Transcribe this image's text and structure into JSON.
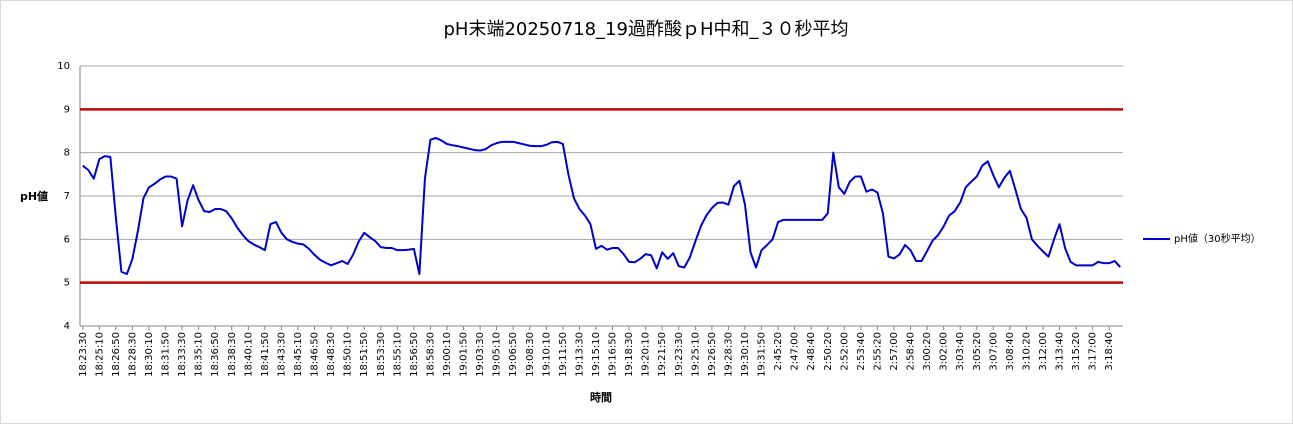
{
  "chart_data": {
    "type": "line",
    "title": "pH末端20250718_19過酢酸ｐH中和_３０秒平均",
    "x_label": "時間",
    "y_label": "pH値",
    "ylim": [
      4,
      10
    ],
    "yticks": [
      4,
      5,
      6,
      7,
      8,
      9,
      10
    ],
    "grid": true,
    "legend": "right",
    "reference_lines": [
      {
        "value": 9,
        "color": "#c00000"
      },
      {
        "value": 5,
        "color": "#c00000"
      }
    ],
    "categories": [
      "18:23:30",
      null,
      null,
      "18:25:10",
      null,
      null,
      "18:26:50",
      null,
      null,
      "18:28:30",
      null,
      null,
      "18:30:10",
      null,
      null,
      "18:31:50",
      null,
      null,
      "18:33:30",
      null,
      null,
      "18:35:10",
      null,
      null,
      "18:36:50",
      null,
      null,
      "18:38:30",
      null,
      null,
      "18:40:10",
      null,
      null,
      "18:41:50",
      null,
      null,
      "18:43:30",
      null,
      null,
      "18:45:10",
      null,
      null,
      "18:46:50",
      null,
      null,
      "18:48:30",
      null,
      null,
      "18:50:10",
      null,
      null,
      "18:51:50",
      null,
      null,
      "18:53:30",
      null,
      null,
      "18:55:10",
      null,
      null,
      "18:56:50",
      null,
      null,
      "18:58:30",
      null,
      null,
      "19:00:10",
      null,
      null,
      "19:01:50",
      null,
      null,
      "19:03:30",
      null,
      null,
      "19:05:10",
      null,
      null,
      "19:06:50",
      null,
      null,
      "19:08:30",
      null,
      null,
      "19:10:10",
      null,
      null,
      "19:11:50",
      null,
      null,
      "19:13:30",
      null,
      null,
      "19:15:10",
      null,
      null,
      "19:16:50",
      null,
      null,
      "19:18:30",
      null,
      null,
      "19:20:10",
      null,
      null,
      "19:21:50",
      null,
      null,
      "19:23:30",
      null,
      null,
      "19:25:10",
      null,
      null,
      "19:26:50",
      null,
      null,
      "19:28:30",
      null,
      null,
      "19:30:10",
      null,
      null,
      "19:31:50",
      null,
      null,
      "2:45:20",
      null,
      null,
      "2:47:00",
      null,
      null,
      "2:48:40",
      null,
      null,
      "2:50:20",
      null,
      null,
      "2:52:00",
      null,
      null,
      "2:53:40",
      null,
      null,
      "2:55:20",
      null,
      null,
      "2:57:00",
      null,
      null,
      "2:58:40",
      null,
      null,
      "3:00:20",
      null,
      null,
      "3:02:00",
      null,
      null,
      "3:03:40",
      null,
      null,
      "3:05:20",
      null,
      null,
      "3:07:00",
      null,
      null,
      "3:08:40",
      null,
      null,
      "3:10:20",
      null,
      null,
      "3:12:00",
      null,
      null,
      "3:13:40",
      null,
      null,
      "3:15:20",
      null,
      null,
      "3:17:00",
      null,
      null,
      "3:18:40",
      null,
      null
    ],
    "series": [
      {
        "name": "pH値（30秒平均）",
        "color": "#0000cc",
        "values": [
          7.7,
          7.6,
          7.4,
          7.85,
          7.92,
          7.9,
          6.5,
          5.25,
          5.2,
          5.55,
          6.2,
          6.95,
          7.2,
          7.28,
          7.38,
          7.45,
          7.45,
          7.4,
          6.3,
          6.9,
          7.25,
          6.9,
          6.65,
          6.63,
          6.7,
          6.7,
          6.65,
          6.48,
          6.27,
          6.1,
          5.96,
          5.88,
          5.82,
          5.75,
          6.35,
          6.4,
          6.15,
          6.0,
          5.94,
          5.9,
          5.88,
          5.78,
          5.64,
          5.53,
          5.46,
          5.4,
          5.45,
          5.5,
          5.43,
          5.65,
          5.95,
          6.15,
          6.05,
          5.96,
          5.82,
          5.8,
          5.8,
          5.75,
          5.75,
          5.76,
          5.78,
          5.2,
          7.4,
          8.3,
          8.34,
          8.28,
          8.2,
          8.17,
          8.15,
          8.12,
          8.09,
          8.06,
          8.05,
          8.08,
          8.17,
          8.22,
          8.25,
          8.25,
          8.25,
          8.22,
          8.19,
          8.16,
          8.15,
          8.15,
          8.18,
          8.24,
          8.25,
          8.2,
          7.5,
          6.95,
          6.7,
          6.55,
          6.35,
          5.78,
          5.85,
          5.76,
          5.8,
          5.8,
          5.66,
          5.48,
          5.47,
          5.55,
          5.66,
          5.63,
          5.33,
          5.7,
          5.55,
          5.68,
          5.38,
          5.35,
          5.58,
          5.95,
          6.3,
          6.55,
          6.72,
          6.84,
          6.85,
          6.8,
          7.23,
          7.35,
          6.8,
          5.7,
          5.35,
          5.75,
          5.87,
          6.0,
          6.4,
          6.45,
          6.45,
          6.45,
          6.45,
          6.45,
          6.45,
          6.45,
          6.45,
          6.6,
          8.0,
          7.2,
          7.05,
          7.33,
          7.45,
          7.45,
          7.1,
          7.15,
          7.08,
          6.6,
          5.6,
          5.56,
          5.65,
          5.87,
          5.75,
          5.5,
          5.5,
          5.73,
          5.97,
          6.1,
          6.3,
          6.55,
          6.65,
          6.85,
          7.2,
          7.33,
          7.45,
          7.7,
          7.8,
          7.48,
          7.2,
          7.42,
          7.58,
          7.15,
          6.7,
          6.5,
          6.0,
          5.85,
          5.72,
          5.6,
          6.0,
          6.35,
          5.8,
          5.48,
          5.4,
          5.4,
          5.4,
          5.4,
          5.48,
          5.45,
          5.45,
          5.5,
          5.36
        ]
      }
    ]
  }
}
